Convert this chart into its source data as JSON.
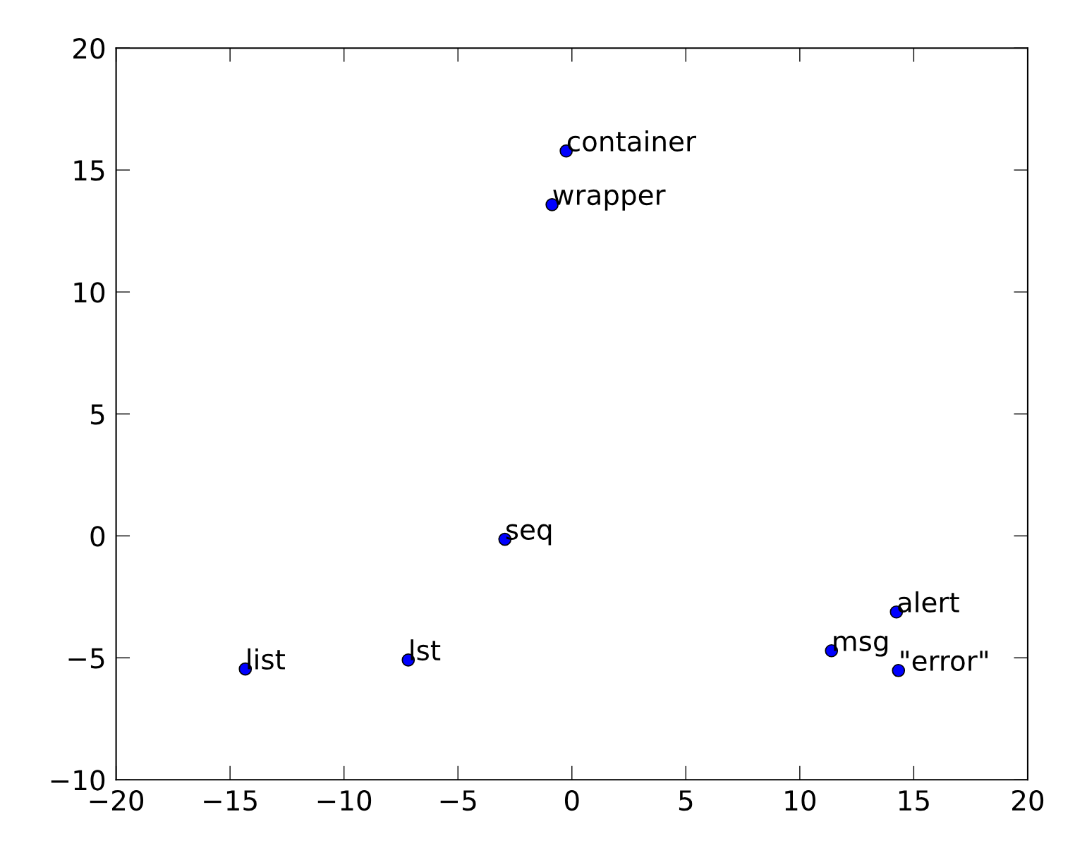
{
  "chart_data": {
    "type": "scatter",
    "x": [
      -0.25,
      -0.87,
      -2.94,
      14.24,
      11.39,
      14.33,
      -14.33,
      -7.18
    ],
    "series": [
      {
        "color": "#0000ff",
        "values": [
          15.78,
          13.58,
          -0.14,
          -3.12,
          -4.71,
          -5.52,
          -5.46,
          -5.09
        ]
      }
    ],
    "marker": "circle",
    "annotations": [
      {
        "text": "container",
        "x": -0.25,
        "y": 15.78
      },
      {
        "text": "wrapper",
        "x": -0.87,
        "y": 13.58
      },
      {
        "text": "seq",
        "x": -2.94,
        "y": -0.14
      },
      {
        "text": "alert",
        "x": 14.24,
        "y": -3.12
      },
      {
        "text": "msg",
        "x": 11.39,
        "y": -4.71
      },
      {
        "text": "\"error\"",
        "x": 14.33,
        "y": -5.52
      },
      {
        "text": "list",
        "x": -14.33,
        "y": -5.46
      },
      {
        "text": "lst",
        "x": -7.18,
        "y": -5.09
      }
    ],
    "xlim": [
      -20,
      20
    ],
    "xticks": [
      -20,
      -15,
      -10,
      -5,
      0,
      5,
      10,
      15,
      20
    ],
    "ylim": [
      -10,
      20
    ],
    "yticks": [
      -10,
      -5,
      0,
      5,
      10,
      15,
      20
    ],
    "grid": false
  }
}
